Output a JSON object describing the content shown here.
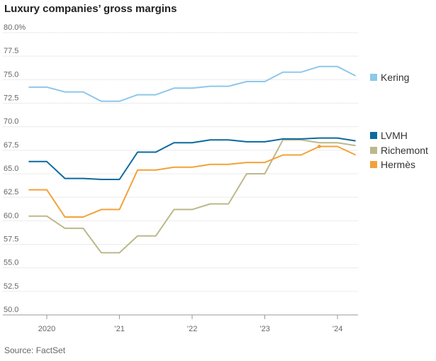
{
  "title": "Luxury companies’ gross margins",
  "source": "Source: FactSet",
  "chart_data": {
    "type": "line",
    "title": "Luxury companies’ gross margins",
    "xlabel": "",
    "ylabel": "",
    "ylim": [
      50.0,
      80.0
    ],
    "y_ticks": [
      "80.0%",
      "77.5",
      "75.0",
      "72.5",
      "70.0",
      "67.5",
      "65.0",
      "62.5",
      "60.0",
      "57.5",
      "55.0",
      "52.5",
      "50.0"
    ],
    "y_tick_values": [
      80.0,
      77.5,
      75.0,
      72.5,
      70.0,
      67.5,
      65.0,
      62.5,
      60.0,
      57.5,
      55.0,
      52.5,
      50.0
    ],
    "x_ticks": [
      "2020",
      "’21",
      "’22",
      "’23",
      "’24"
    ],
    "x_tick_values": [
      2020.0,
      2021.0,
      2022.0,
      2023.0,
      2024.0
    ],
    "x": [
      2019.75,
      2020.0,
      2020.25,
      2020.5,
      2020.75,
      2021.0,
      2021.25,
      2021.5,
      2021.75,
      2022.0,
      2022.25,
      2022.5,
      2022.75,
      2023.0,
      2023.25,
      2023.5,
      2023.75,
      2024.0,
      2024.25
    ],
    "grid": "horizontal",
    "legend_placement": "right",
    "series": [
      {
        "name": "Kering",
        "color": "#8ec8ea",
        "values": [
          74.2,
          74.2,
          73.7,
          73.7,
          72.7,
          72.7,
          73.4,
          73.4,
          74.1,
          74.1,
          74.3,
          74.3,
          74.8,
          74.8,
          75.8,
          75.8,
          76.4,
          76.4,
          75.4
        ]
      },
      {
        "name": "LVMH",
        "color": "#0b6a9e",
        "values": [
          66.3,
          66.3,
          64.5,
          64.5,
          64.4,
          64.4,
          67.3,
          67.3,
          68.3,
          68.3,
          68.6,
          68.6,
          68.4,
          68.4,
          68.7,
          68.7,
          68.8,
          68.8,
          68.5
        ]
      },
      {
        "name": "Richemont",
        "color": "#bdb88a",
        "values": [
          60.5,
          60.5,
          59.2,
          59.2,
          56.6,
          56.6,
          58.4,
          58.4,
          61.2,
          61.2,
          61.8,
          61.8,
          65.0,
          65.0,
          68.6,
          68.6,
          68.3,
          68.3,
          68.0
        ]
      },
      {
        "name": "Hermès",
        "color": "#f2a23a",
        "values": [
          63.3,
          63.3,
          60.4,
          60.4,
          61.2,
          61.2,
          65.4,
          65.4,
          65.7,
          65.7,
          66.0,
          66.0,
          66.2,
          66.2,
          67.0,
          67.0,
          67.9,
          67.9,
          67.0
        ]
      }
    ],
    "legend": [
      "Kering",
      "LVMH",
      "Richemont",
      "Hermès"
    ]
  }
}
